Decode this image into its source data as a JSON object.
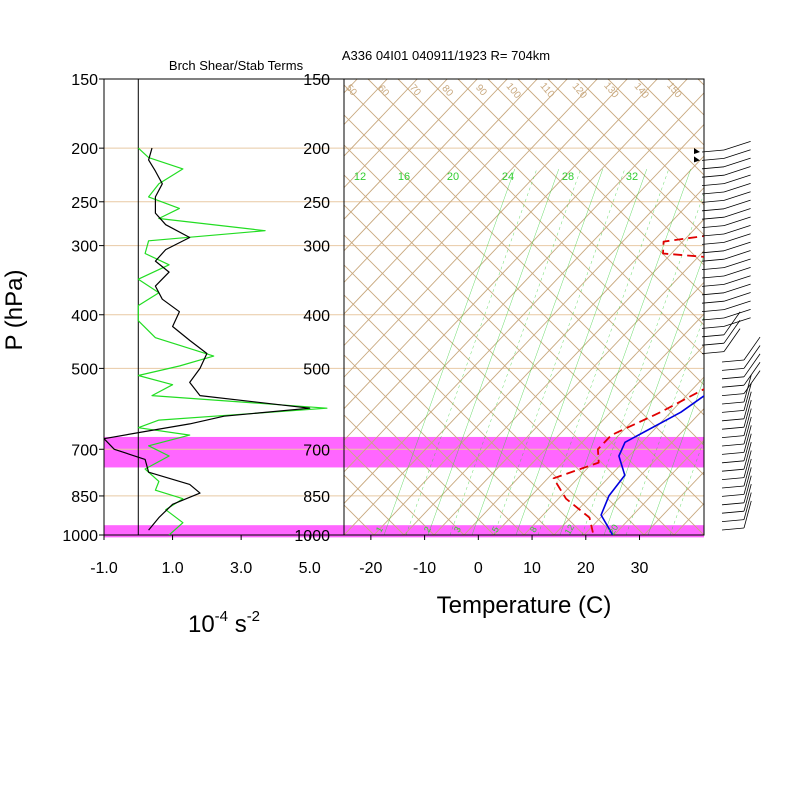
{
  "header": {
    "left_title": "Brch Shear/Stab Terms",
    "right_title": "A336 04I01 040911/1923 R= 704km"
  },
  "axes": {
    "y_label": "P (hPa)",
    "left_x_label_base": "10",
    "left_x_label_exp": "-4",
    "left_x_label_unit": "s",
    "left_x_label_unit_exp": "-2",
    "right_x_label": "Temperature (C)"
  },
  "colors": {
    "temperature": "#e00000",
    "dewpoint_like": "#0000e0",
    "shear": "#000000",
    "stability": "#22dd22",
    "highlight": "#ff66ff",
    "isotherm": "#c8a87e",
    "mixing": "#32cd32",
    "pressure_grid": "#e8c9a4"
  },
  "chart_data": [
    {
      "type": "line",
      "title": "Brch Shear/Stab Terms",
      "xlabel": "10^-4 s^-2",
      "ylabel": "P (hPa)",
      "y_scale": "log",
      "y_reversed": true,
      "xlim": [
        -1.0,
        6.0
      ],
      "ylim": [
        150,
        1000
      ],
      "x_ticks": [
        "-1.0",
        "1.0",
        "3.0",
        "5.0"
      ],
      "x_tick_values": [
        -1,
        1,
        3,
        5
      ],
      "y_ticks": [
        "150",
        "200",
        "250",
        "300",
        "400",
        "500",
        "700",
        "850",
        "1000"
      ],
      "y_tick_values": [
        150,
        200,
        250,
        300,
        400,
        500,
        700,
        850,
        1000
      ],
      "series": [
        {
          "key": "black",
          "points": [
            [
              0.4,
              200
            ],
            [
              0.3,
              210
            ],
            [
              0.5,
              220
            ],
            [
              0.7,
              232
            ],
            [
              0.5,
              245
            ],
            [
              0.5,
              262
            ],
            [
              0.8,
              275
            ],
            [
              1.5,
              290
            ],
            [
              0.8,
              305
            ],
            [
              0.5,
              320
            ],
            [
              0.9,
              335
            ],
            [
              0.5,
              355
            ],
            [
              0.7,
              375
            ],
            [
              1.2,
              395
            ],
            [
              1.0,
              420
            ],
            [
              1.5,
              445
            ],
            [
              2.0,
              470
            ],
            [
              1.8,
              500
            ],
            [
              1.5,
              530
            ],
            [
              1.8,
              560
            ],
            [
              5.0,
              590
            ],
            [
              2.5,
              610
            ],
            [
              1.5,
              630
            ],
            [
              0.2,
              650
            ],
            [
              -1.0,
              670
            ],
            [
              -0.7,
              700
            ],
            [
              0.2,
              730
            ],
            [
              0.3,
              770
            ],
            [
              1.5,
              810
            ],
            [
              1.8,
              840
            ],
            [
              1.0,
              880
            ],
            [
              0.6,
              930
            ],
            [
              0.3,
              980
            ]
          ]
        },
        {
          "key": "green",
          "points": [
            [
              0.0,
              200
            ],
            [
              0.3,
              208
            ],
            [
              1.3,
              218
            ],
            [
              0.6,
              232
            ],
            [
              0.3,
              245
            ],
            [
              1.2,
              257
            ],
            [
              0.6,
              268
            ],
            [
              3.7,
              282
            ],
            [
              0.3,
              294
            ],
            [
              0.2,
              310
            ],
            [
              0.9,
              325
            ],
            [
              0.0,
              345
            ],
            [
              0.6,
              365
            ],
            [
              0.0,
              385
            ],
            [
              0.0,
              410
            ],
            [
              0.5,
              440
            ],
            [
              2.2,
              475
            ],
            [
              1.2,
              495
            ],
            [
              0.0,
              515
            ],
            [
              1.0,
              535
            ],
            [
              0.4,
              560
            ],
            [
              5.5,
              590
            ],
            [
              0.6,
              620
            ],
            [
              0.0,
              640
            ],
            [
              1.5,
              660
            ],
            [
              0.3,
              690
            ],
            [
              0.9,
              720
            ],
            [
              0.2,
              760
            ],
            [
              0.6,
              800
            ],
            [
              0.5,
              830
            ],
            [
              1.3,
              860
            ],
            [
              0.8,
              900
            ],
            [
              1.3,
              950
            ],
            [
              0.9,
              1000
            ]
          ]
        }
      ]
    },
    {
      "type": "line",
      "title": "A336 04I01 040911/1923 R= 704km",
      "xlabel": "Temperature (C)",
      "ylabel": "P (hPa)",
      "y_scale": "log",
      "y_reversed": true,
      "skewed": true,
      "xlim": [
        -25,
        42
      ],
      "ylim": [
        150,
        1000
      ],
      "x_ticks": [
        "-20",
        "-10",
        "0",
        "10",
        "20",
        "30"
      ],
      "x_tick_values": [
        -20,
        -10,
        0,
        10,
        20,
        30
      ],
      "y_ticks": [
        "150",
        "200",
        "250",
        "300",
        "400",
        "500",
        "700",
        "850",
        "1000"
      ],
      "y_tick_values": [
        150,
        200,
        250,
        300,
        400,
        500,
        700,
        850,
        1000
      ],
      "isotherm_labels": [
        "12",
        "16",
        "20",
        "24",
        "28",
        "32"
      ],
      "theta_labels": [
        "50",
        "60",
        "70",
        "80",
        "90",
        "100",
        "110",
        "120",
        "130",
        "140",
        "150"
      ],
      "mixing_ratio_labels": [
        "1",
        "2",
        "3",
        "5",
        "8",
        "12",
        "20"
      ],
      "highlight_bands": [
        [
          665,
          755
        ],
        [
          960,
          1010
        ]
      ],
      "series": [
        {
          "key": "blue",
          "points": [
            [
              -0.3,
              195
            ],
            [
              5.4,
              230
            ],
            [
              10.3,
              270
            ],
            [
              14.2,
              310
            ],
            [
              17.8,
              360
            ],
            [
              18.4,
              400
            ],
            [
              19.1,
              450
            ],
            [
              18.9,
              500
            ],
            [
              17.8,
              550
            ],
            [
              16.0,
              600
            ],
            [
              10.9,
              680
            ],
            [
              12.2,
              720
            ],
            [
              16.7,
              780
            ],
            [
              17.4,
              850
            ],
            [
              19.3,
              920
            ],
            [
              25.0,
              1000
            ]
          ]
        },
        {
          "key": "red",
          "points": [
            [
              -4.4,
              215
            ],
            [
              3.1,
              240
            ],
            [
              4.2,
              258
            ],
            [
              -2.7,
              280
            ],
            [
              -17.4,
              295
            ],
            [
              -15.4,
              310
            ],
            [
              3.3,
              320
            ],
            [
              10.4,
              345
            ],
            [
              13.2,
              385
            ],
            [
              15.0,
              450
            ],
            [
              16.6,
              540
            ],
            [
              12.2,
              600
            ],
            [
              7.1,
              660
            ],
            [
              7.1,
              700
            ],
            [
              9.6,
              740
            ],
            [
              4.0,
              790
            ],
            [
              9.9,
              860
            ],
            [
              17.6,
              930
            ],
            [
              20.9,
              990
            ]
          ]
        }
      ]
    }
  ]
}
